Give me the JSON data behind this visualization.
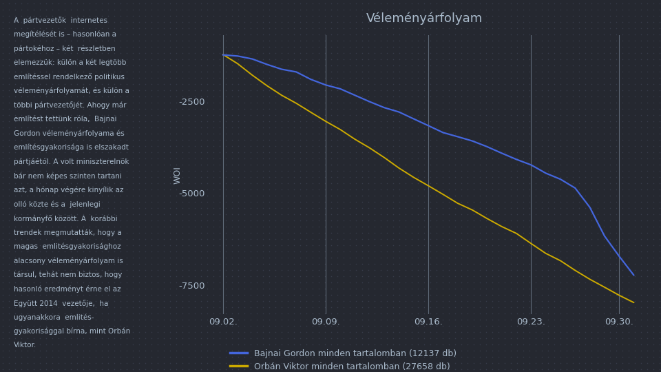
{
  "title": "Véleményárfolyam",
  "ylabel": "WOI",
  "background_color": "#252830",
  "text_color": "#aabbcc",
  "x_labels": [
    "09.02.",
    "09.09.",
    "09.16.",
    "09.23.",
    "09.30."
  ],
  "x_ticks": [
    0,
    7,
    14,
    21,
    27
  ],
  "y_ticks": [
    -7500,
    -5000,
    -2500
  ],
  "ylim": [
    -8300,
    -700
  ],
  "xlim": [
    -1,
    28.5
  ],
  "line1_color": "#4466dd",
  "line2_color": "#ccaa00",
  "line1_label": "Bajnai Gordon minden tartalomban (12137 db)",
  "line2_label": "Orbán Viktor minden tartalomban (27658 db)",
  "left_text_lines": [
    "A  pártvezetők  internetes",
    "megítélését is – hasonlóan a",
    "pártokéhoz – két  részletben",
    "elemezzük: külön a két legtöbb",
    "említéssel rendelkező politikus",
    "véleményárfolyamát, és külön a",
    "többi pártvezetőjét. Ahogy már",
    "említést tettünk róla,  Bajnai",
    "Gordon véleményárfolyama és",
    "említésgyakorisága is elszakadt",
    "pártjáétól. A volt miniszterelnök",
    "bár nem képes szinten tartani",
    "azt, a hónap végére kinyílik az",
    "olló közte és a  jelenlegi",
    "kormányfő között. A  korábbi",
    "trendek megmutatták, hogy a",
    "magas  emlitésgyakorisághoz",
    "alacsony véleményárfolyam is",
    "társul, tehát nem biztos, hogy",
    "hasonló eredményt érne el az",
    "Együtt 2014  vezetője,  ha",
    "ugyanakkora  emlités-",
    "gyakorisággal bírna, mint Orbán",
    "Viktor."
  ]
}
